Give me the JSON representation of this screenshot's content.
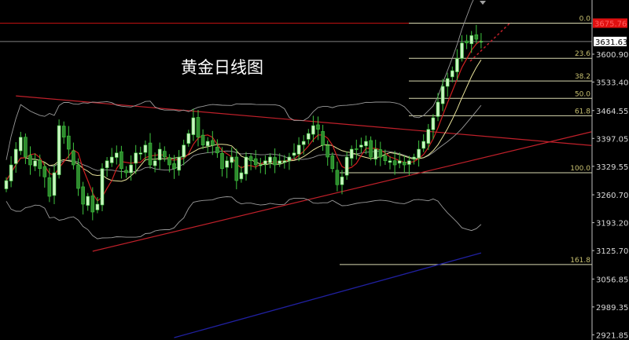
{
  "chart_data": {
    "type": "candlestick",
    "title": "黄金日线图",
    "y_axis": {
      "position": "right",
      "ylim": [
        2905,
        3700
      ],
      "tick_labels": [
        "3600.90",
        "3533.40",
        "3464.55",
        "3397.05",
        "3329.55",
        "3260.70",
        "3193.20",
        "3125.70",
        "3056.85",
        "2989.35",
        "2921.85"
      ]
    },
    "current_price_label": "3631.63",
    "high_price_label": "3675.76",
    "closes": [
      3295,
      3333,
      3371,
      3400,
      3352,
      3333,
      3343,
      3324,
      3304,
      3257,
      3314,
      3428,
      3400,
      3371,
      3333,
      3276,
      3238,
      3257,
      3219,
      3238,
      3324,
      3343,
      3352,
      3362,
      3324,
      3314,
      3333,
      3362,
      3362,
      3381,
      3333,
      3343,
      3371,
      3352,
      3333,
      3324,
      3352,
      3381,
      3409,
      3447,
      3400,
      3381,
      3390,
      3381,
      3362,
      3324,
      3343,
      3352,
      3295,
      3314,
      3352,
      3343,
      3333,
      3333,
      3343,
      3352,
      3333,
      3343,
      3343,
      3352,
      3362,
      3381,
      3390,
      3409,
      3428,
      3419,
      3381,
      3352,
      3324,
      3285,
      3304,
      3352,
      3371,
      3371,
      3381,
      3390,
      3352,
      3371,
      3352,
      3343,
      3343,
      3333,
      3343,
      3333,
      3343,
      3352,
      3371,
      3390,
      3419,
      3447,
      3485,
      3523,
      3542,
      3561,
      3590,
      3628,
      3628,
      3646,
      3637,
      3632
    ],
    "fibonacci_levels": [
      {
        "label": "0.0",
        "price": 3676
      },
      {
        "label": "23.6",
        "price": 3591
      },
      {
        "label": "38.2",
        "price": 3536
      },
      {
        "label": "50.0",
        "price": 3494
      },
      {
        "label": "61.8",
        "price": 3452
      },
      {
        "label": "100.0",
        "price": 3314
      },
      {
        "label": "161.8",
        "price": 3092
      }
    ],
    "trendlines": [
      {
        "name": "upper",
        "from": {
          "bar": 2,
          "price": 3500
        },
        "to": {
          "bar": 122,
          "price": 3380
        }
      },
      {
        "name": "lower",
        "from": {
          "bar": 18,
          "price": 3124
        },
        "to": {
          "bar": 122,
          "price": 3413
        }
      }
    ],
    "long_ma": {
      "from": {
        "bar": 35,
        "price": 2915
      },
      "to": {
        "bar": 99,
        "price": 3120
      }
    },
    "indicators": [
      "MA fast (red)",
      "MA medium (yellow)",
      "Bollinger bands (gray)"
    ],
    "colors": {
      "background": "#000000",
      "bull": "#c8f5c0",
      "bear": "#2e8b2e",
      "wick": "#3ec43e",
      "ma_fast": "#d02020",
      "ma_mid": "#e8e29a",
      "bollinger": "#9a9a9a",
      "trendline": "#c0202a",
      "fib": "#d8d8b0",
      "fib_text": "#c8c070",
      "long_ma": "#2020a0",
      "price_line": "#808080",
      "high_line": "#c01010"
    },
    "grid": false
  }
}
